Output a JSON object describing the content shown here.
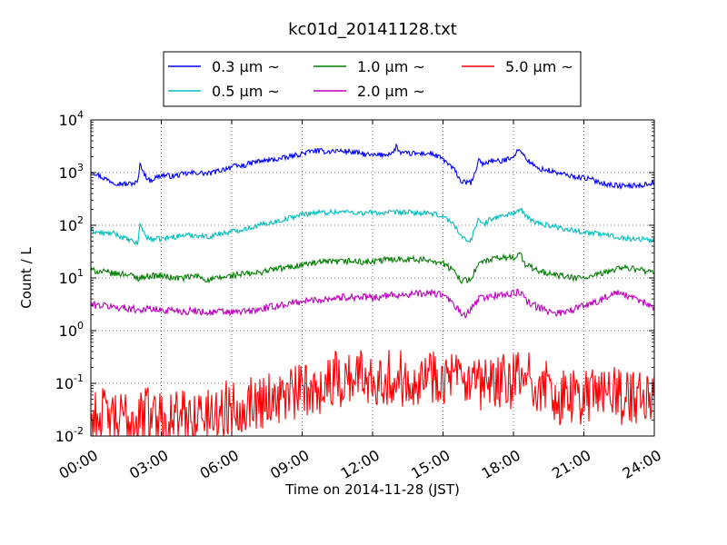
{
  "chart_data": {
    "type": "line",
    "title": "kc01d_20141128.txt",
    "xlabel": "Time on 2014-11-28 (JST)",
    "ylabel": "Count / L",
    "xlim": [
      0,
      24
    ],
    "ylim": [
      0.01,
      10000
    ],
    "yscale": "log",
    "grid": true,
    "legend_placement": "top-center",
    "x_ticks": [
      {
        "value": 0,
        "label": "00:00"
      },
      {
        "value": 3,
        "label": "03:00"
      },
      {
        "value": 6,
        "label": "06:00"
      },
      {
        "value": 9,
        "label": "09:00"
      },
      {
        "value": 12,
        "label": "12:00"
      },
      {
        "value": 15,
        "label": "15:00"
      },
      {
        "value": 18,
        "label": "18:00"
      },
      {
        "value": 21,
        "label": "21:00"
      },
      {
        "value": 24,
        "label": "24:00"
      }
    ],
    "y_ticks": [
      {
        "value": 0.01,
        "base": "10",
        "exp": "-2"
      },
      {
        "value": 0.1,
        "base": "10",
        "exp": "-1"
      },
      {
        "value": 1,
        "base": "10",
        "exp": "0"
      },
      {
        "value": 10,
        "base": "10",
        "exp": "1"
      },
      {
        "value": 100,
        "base": "10",
        "exp": "2"
      },
      {
        "value": 1000,
        "base": "10",
        "exp": "3"
      },
      {
        "value": 10000,
        "base": "10",
        "exp": "4"
      }
    ],
    "series": [
      {
        "name": "0.3 μm ~",
        "color": "#0000ff",
        "x": [
          0,
          0.5,
          1,
          1.5,
          2,
          2.1,
          2.3,
          2.5,
          3,
          3.5,
          4,
          4.5,
          5,
          5.5,
          6,
          6.5,
          7,
          7.5,
          8,
          8.5,
          9,
          9.5,
          10,
          10.5,
          11,
          11.5,
          12,
          12.5,
          12.9,
          13,
          13.2,
          13.5,
          14,
          14.5,
          15,
          15.5,
          15.8,
          16,
          16.2,
          16.4,
          16.5,
          16.7,
          17,
          17.5,
          18,
          18.3,
          18.5,
          19,
          19.5,
          20,
          20.5,
          21,
          21.5,
          22,
          22.5,
          23,
          23.5,
          24
        ],
        "values": [
          1100,
          800,
          650,
          600,
          650,
          1500,
          900,
          700,
          900,
          850,
          950,
          1000,
          950,
          1100,
          1300,
          1350,
          1600,
          1700,
          1800,
          2000,
          2300,
          2600,
          2500,
          2600,
          2500,
          2300,
          2100,
          2200,
          2400,
          3200,
          2300,
          2300,
          2300,
          2300,
          1800,
          1100,
          650,
          650,
          650,
          1000,
          1900,
          1400,
          1700,
          1600,
          2100,
          2800,
          1900,
          1200,
          1100,
          950,
          850,
          800,
          700,
          600,
          560,
          560,
          580,
          650
        ]
      },
      {
        "name": "0.5 μm ~",
        "color": "#00bfbf",
        "x": [
          0,
          0.5,
          1,
          1.5,
          2,
          2.1,
          2.3,
          2.5,
          3,
          3.5,
          4,
          4.5,
          5,
          5.5,
          6,
          6.5,
          7,
          7.5,
          8,
          8.5,
          9,
          9.5,
          10,
          10.5,
          11,
          11.5,
          12,
          12.5,
          13,
          13.5,
          14,
          14.5,
          15,
          15.5,
          15.8,
          16,
          16.2,
          16.4,
          16.5,
          16.7,
          17,
          17.5,
          18,
          18.3,
          18.5,
          19,
          19.5,
          20,
          20.5,
          21,
          21.5,
          22,
          22.5,
          23,
          23.5,
          24
        ],
        "values": [
          80,
          70,
          70,
          55,
          45,
          110,
          65,
          55,
          55,
          60,
          65,
          65,
          60,
          70,
          75,
          85,
          95,
          110,
          120,
          140,
          160,
          175,
          175,
          180,
          180,
          170,
          175,
          170,
          175,
          175,
          170,
          165,
          150,
          100,
          60,
          50,
          55,
          100,
          130,
          100,
          130,
          150,
          170,
          200,
          150,
          110,
          100,
          90,
          80,
          75,
          70,
          65,
          60,
          55,
          55,
          50
        ]
      },
      {
        "name": "1.0 μm ~",
        "color": "#008000",
        "x": [
          0,
          0.5,
          1,
          1.5,
          2,
          2.5,
          3,
          3.5,
          4,
          4.5,
          5,
          5.5,
          6,
          6.5,
          7,
          7.5,
          8,
          8.5,
          9,
          9.5,
          10,
          10.5,
          11,
          11.5,
          12,
          12.5,
          13,
          13.5,
          14,
          14.5,
          15,
          15.5,
          15.8,
          16,
          16.2,
          16.5,
          16.7,
          17,
          17.5,
          18,
          18.3,
          18.5,
          19,
          19.5,
          20,
          20.5,
          21,
          21.5,
          22,
          22.5,
          23,
          23.5,
          24
        ],
        "values": [
          14,
          13,
          12,
          12,
          10,
          11,
          11,
          10,
          10,
          11,
          9,
          10,
          11,
          12,
          12,
          14,
          15,
          16,
          18,
          19,
          20,
          20,
          21,
          20,
          20,
          22,
          23,
          23,
          22,
          22,
          19,
          13,
          9,
          9,
          10,
          18,
          20,
          22,
          24,
          25,
          28,
          18,
          14,
          12,
          11,
          10,
          10,
          11,
          13,
          16,
          15,
          14,
          12
        ]
      },
      {
        "name": "2.0 μm ~",
        "color": "#bf00bf",
        "x": [
          0,
          0.5,
          1,
          1.5,
          2,
          2.5,
          3,
          3.5,
          4,
          4.5,
          5,
          5.5,
          6,
          6.5,
          7,
          7.5,
          8,
          8.5,
          9,
          9.5,
          10,
          10.5,
          11,
          11.5,
          12,
          12.5,
          13,
          13.5,
          14,
          14.5,
          15,
          15.5,
          15.8,
          16,
          16.2,
          16.5,
          16.7,
          17,
          17.5,
          18,
          18.3,
          18.5,
          19,
          19.5,
          20,
          20.5,
          21,
          21.5,
          22,
          22.5,
          23,
          23.5,
          24
        ],
        "values": [
          3.1,
          3.0,
          2.8,
          2.7,
          2.5,
          2.6,
          2.4,
          2.5,
          2.3,
          2.4,
          2.2,
          2.3,
          2.2,
          2.3,
          2.4,
          2.7,
          3.0,
          3.3,
          3.6,
          3.8,
          4.0,
          4.2,
          4.4,
          4.3,
          4.2,
          4.5,
          4.8,
          4.9,
          5.0,
          5.2,
          4.8,
          3.0,
          2.0,
          2.0,
          2.5,
          4.0,
          4.2,
          4.5,
          4.8,
          5.0,
          5.5,
          3.8,
          2.8,
          2.3,
          2.2,
          2.5,
          3.0,
          3.5,
          4.5,
          5.2,
          4.2,
          3.5,
          2.8
        ]
      },
      {
        "name": "5.0 μm ~",
        "color": "#ff0000",
        "x": [
          0,
          0.5,
          1,
          1.5,
          2,
          2.5,
          3,
          3.5,
          4,
          4.5,
          5,
          5.5,
          6,
          6.5,
          7,
          7.5,
          8,
          8.5,
          9,
          9.5,
          10,
          10.5,
          11,
          11.5,
          12,
          12.5,
          13,
          13.5,
          14,
          14.5,
          15,
          15.5,
          16,
          16.5,
          17,
          17.5,
          18,
          18.5,
          19,
          19.5,
          20,
          20.5,
          21,
          21.5,
          22,
          22.5,
          23,
          23.5,
          24
        ],
        "values": [
          0.02,
          0.025,
          0.018,
          0.022,
          0.02,
          0.03,
          0.025,
          0.02,
          0.022,
          0.025,
          0.025,
          0.03,
          0.035,
          0.04,
          0.045,
          0.05,
          0.055,
          0.06,
          0.07,
          0.08,
          0.1,
          0.12,
          0.13,
          0.14,
          0.14,
          0.13,
          0.12,
          0.13,
          0.14,
          0.15,
          0.14,
          0.12,
          0.08,
          0.08,
          0.09,
          0.1,
          0.11,
          0.12,
          0.1,
          0.07,
          0.05,
          0.05,
          0.06,
          0.07,
          0.07,
          0.06,
          0.05,
          0.05,
          0.05
        ]
      }
    ]
  }
}
